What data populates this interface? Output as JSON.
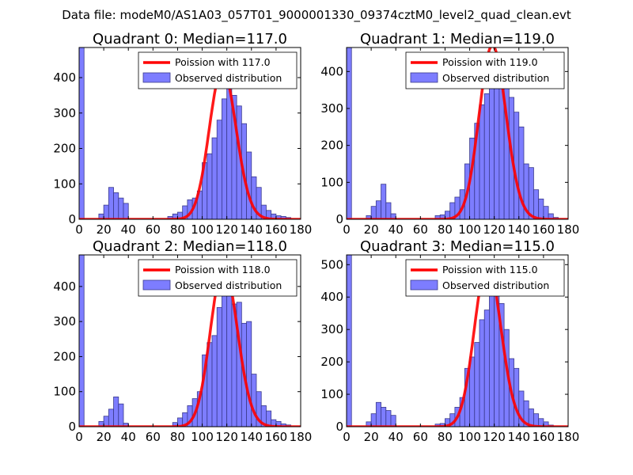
{
  "figure_title": "Data file: modeM0/AS1A03_057T01_9000001330_09374cztM0_level2_quad_clean.evt",
  "colors": {
    "hist_fill": "#7d7dff",
    "hist_edge": "#3a3a8c",
    "curve": "#ff0000"
  },
  "chart_data": [
    {
      "type": "bar",
      "title": "Quadrant 0: Median=117.0",
      "median": 117.0,
      "xlim": [
        0,
        180
      ],
      "ylim": [
        0,
        485
      ],
      "xticks": [
        0,
        20,
        40,
        60,
        80,
        100,
        120,
        140,
        160,
        180
      ],
      "yticks": [
        0,
        100,
        200,
        300,
        400
      ],
      "bin_width": 4,
      "hist_bins": [
        [
          0,
          485
        ],
        [
          16,
          15
        ],
        [
          20,
          40
        ],
        [
          24,
          90
        ],
        [
          28,
          75
        ],
        [
          32,
          60
        ],
        [
          36,
          45
        ],
        [
          72,
          8
        ],
        [
          76,
          15
        ],
        [
          80,
          20
        ],
        [
          84,
          38
        ],
        [
          88,
          55
        ],
        [
          92,
          60
        ],
        [
          96,
          80
        ],
        [
          100,
          160
        ],
        [
          104,
          185
        ],
        [
          108,
          230
        ],
        [
          112,
          280
        ],
        [
          116,
          340
        ],
        [
          120,
          380
        ],
        [
          124,
          350
        ],
        [
          128,
          320
        ],
        [
          132,
          270
        ],
        [
          136,
          190
        ],
        [
          140,
          120
        ],
        [
          144,
          90
        ],
        [
          148,
          40
        ],
        [
          152,
          25
        ],
        [
          156,
          15
        ],
        [
          160,
          10
        ],
        [
          164,
          8
        ],
        [
          168,
          5
        ]
      ],
      "legend": [
        "Poission with 117.0",
        "Observed distribution"
      ]
    },
    {
      "type": "bar",
      "title": "Quadrant 1: Median=119.0",
      "median": 119.0,
      "xlim": [
        0,
        180
      ],
      "ylim": [
        0,
        465
      ],
      "xticks": [
        0,
        20,
        40,
        60,
        80,
        100,
        120,
        140,
        160,
        180
      ],
      "yticks": [
        0,
        100,
        200,
        300,
        400
      ],
      "bin_width": 4,
      "hist_bins": [
        [
          0,
          465
        ],
        [
          16,
          10
        ],
        [
          20,
          35
        ],
        [
          24,
          50
        ],
        [
          28,
          95
        ],
        [
          32,
          45
        ],
        [
          36,
          15
        ],
        [
          72,
          10
        ],
        [
          76,
          12
        ],
        [
          80,
          22
        ],
        [
          84,
          45
        ],
        [
          88,
          60
        ],
        [
          92,
          80
        ],
        [
          96,
          150
        ],
        [
          100,
          220
        ],
        [
          104,
          260
        ],
        [
          108,
          310
        ],
        [
          112,
          340
        ],
        [
          116,
          380
        ],
        [
          120,
          420
        ],
        [
          124,
          375
        ],
        [
          128,
          410
        ],
        [
          132,
          330
        ],
        [
          136,
          290
        ],
        [
          140,
          250
        ],
        [
          144,
          150
        ],
        [
          148,
          140
        ],
        [
          152,
          80
        ],
        [
          156,
          55
        ],
        [
          160,
          35
        ],
        [
          164,
          15
        ],
        [
          168,
          5
        ]
      ],
      "legend": [
        "Poission with 119.0",
        "Observed distribution"
      ]
    },
    {
      "type": "bar",
      "title": "Quadrant 2: Median=118.0",
      "median": 118.0,
      "xlim": [
        0,
        180
      ],
      "ylim": [
        0,
        490
      ],
      "xticks": [
        0,
        20,
        40,
        60,
        80,
        100,
        120,
        140,
        160,
        180
      ],
      "yticks": [
        0,
        100,
        200,
        300,
        400
      ],
      "bin_width": 4,
      "hist_bins": [
        [
          0,
          490
        ],
        [
          16,
          15
        ],
        [
          20,
          30
        ],
        [
          24,
          50
        ],
        [
          28,
          85
        ],
        [
          32,
          65
        ],
        [
          36,
          10
        ],
        [
          76,
          12
        ],
        [
          80,
          25
        ],
        [
          84,
          40
        ],
        [
          88,
          60
        ],
        [
          92,
          80
        ],
        [
          96,
          100
        ],
        [
          100,
          205
        ],
        [
          104,
          240
        ],
        [
          108,
          260
        ],
        [
          112,
          340
        ],
        [
          116,
          380
        ],
        [
          120,
          410
        ],
        [
          124,
          350
        ],
        [
          128,
          355
        ],
        [
          132,
          295
        ],
        [
          136,
          300
        ],
        [
          140,
          150
        ],
        [
          144,
          100
        ],
        [
          148,
          60
        ],
        [
          152,
          45
        ],
        [
          156,
          20
        ],
        [
          160,
          15
        ],
        [
          164,
          8
        ],
        [
          168,
          5
        ]
      ],
      "legend": [
        "Poission with 118.0",
        "Observed distribution"
      ]
    },
    {
      "type": "bar",
      "title": "Quadrant 3: Median=115.0",
      "median": 115.0,
      "xlim": [
        0,
        180
      ],
      "ylim": [
        0,
        530
      ],
      "xticks": [
        0,
        20,
        40,
        60,
        80,
        100,
        120,
        140,
        160,
        180
      ],
      "yticks": [
        0,
        100,
        200,
        300,
        400,
        500
      ],
      "bin_width": 4,
      "hist_bins": [
        [
          0,
          530
        ],
        [
          16,
          15
        ],
        [
          20,
          40
        ],
        [
          24,
          75
        ],
        [
          28,
          60
        ],
        [
          32,
          50
        ],
        [
          36,
          35
        ],
        [
          72,
          8
        ],
        [
          76,
          10
        ],
        [
          80,
          25
        ],
        [
          84,
          40
        ],
        [
          88,
          60
        ],
        [
          92,
          90
        ],
        [
          96,
          180
        ],
        [
          100,
          215
        ],
        [
          104,
          260
        ],
        [
          108,
          330
        ],
        [
          112,
          360
        ],
        [
          116,
          420
        ],
        [
          120,
          450
        ],
        [
          124,
          380
        ],
        [
          128,
          300
        ],
        [
          132,
          210
        ],
        [
          136,
          180
        ],
        [
          140,
          110
        ],
        [
          144,
          80
        ],
        [
          148,
          55
        ],
        [
          152,
          40
        ],
        [
          156,
          25
        ],
        [
          160,
          15
        ],
        [
          164,
          5
        ]
      ],
      "legend": [
        "Poission with 115.0",
        "Observed distribution"
      ]
    }
  ]
}
